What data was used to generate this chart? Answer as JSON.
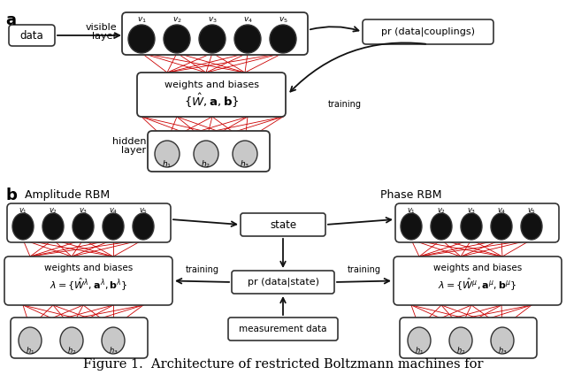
{
  "bg_color": "#ffffff",
  "title_text": "Figure 1.  Architecture of restricted Boltzmann machines for",
  "label_a": "a",
  "label_b": "b",
  "visible_node_color": "#111111",
  "hidden_node_color": "#c8c8c8",
  "box_edgecolor": "#333333",
  "connection_color": "#cc0000",
  "arrow_color": "#111111",
  "font_size": 8.5,
  "small_font": 7.0,
  "caption_font": 10.5
}
